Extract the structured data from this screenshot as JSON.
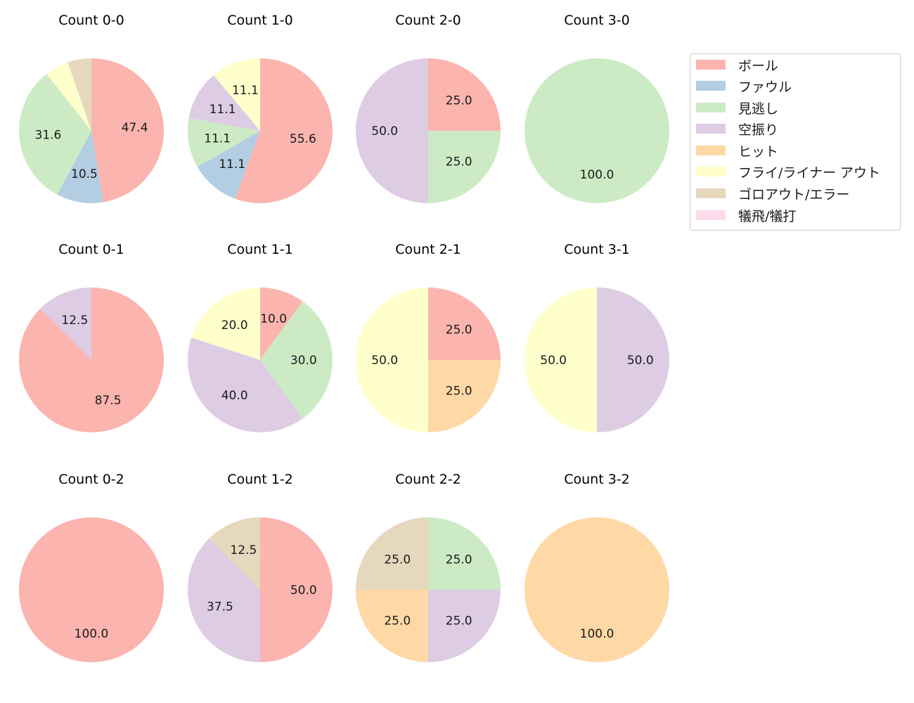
{
  "legend": {
    "items": [
      {
        "label": "ボール",
        "color": "#fbb4ae"
      },
      {
        "label": "ファウル",
        "color": "#b3cde3"
      },
      {
        "label": "見逃し",
        "color": "#ccebc5"
      },
      {
        "label": "空振り",
        "color": "#decbe4"
      },
      {
        "label": "ヒット",
        "color": "#fed9a6"
      },
      {
        "label": "フライ/ライナー アウト",
        "color": "#ffffcc"
      },
      {
        "label": "ゴロアウト/エラー",
        "color": "#e5d8bd"
      },
      {
        "label": "犠飛/犠打",
        "color": "#fddaec"
      }
    ]
  },
  "chart_data": {
    "type": "pie",
    "categories": [
      "ボール",
      "ファウル",
      "見逃し",
      "空振り",
      "ヒット",
      "フライ/ライナー アウト",
      "ゴロアウト/エラー",
      "犠飛/犠打"
    ],
    "charts": [
      {
        "title": "Count 0-0",
        "values": [
          47.4,
          10.5,
          31.6,
          0,
          0,
          5.3,
          5.3,
          0
        ],
        "labels": [
          "47.4",
          "10.5",
          "31.6",
          "",
          "",
          "",
          "",
          ""
        ]
      },
      {
        "title": "Count 1-0",
        "values": [
          55.6,
          11.1,
          11.1,
          11.1,
          0,
          11.1,
          0,
          0
        ],
        "labels": [
          "55.6",
          "11.1",
          "11.1",
          "11.1",
          "",
          "11.1",
          "",
          ""
        ]
      },
      {
        "title": "Count 2-0",
        "values": [
          25.0,
          0,
          25.0,
          50.0,
          0,
          0,
          0,
          0
        ],
        "labels": [
          "25.0",
          "",
          "25.0",
          "50.0",
          "",
          "",
          "",
          ""
        ]
      },
      {
        "title": "Count 3-0",
        "values": [
          0,
          0,
          100.0,
          0,
          0,
          0,
          0,
          0
        ],
        "labels": [
          "",
          "",
          "100.0",
          "",
          "",
          "",
          "",
          ""
        ]
      },
      {
        "title": "Count 0-1",
        "values": [
          87.5,
          0,
          0,
          12.5,
          0,
          0,
          0,
          0
        ],
        "labels": [
          "87.5",
          "",
          "",
          "12.5",
          "",
          "",
          "",
          ""
        ]
      },
      {
        "title": "Count 1-1",
        "values": [
          10.0,
          0,
          30.0,
          40.0,
          0,
          20.0,
          0,
          0
        ],
        "labels": [
          "10.0",
          "",
          "30.0",
          "40.0",
          "",
          "20.0",
          "",
          ""
        ]
      },
      {
        "title": "Count 2-1",
        "values": [
          25.0,
          0,
          0,
          0,
          25.0,
          50.0,
          0,
          0
        ],
        "labels": [
          "25.0",
          "",
          "",
          "",
          "25.0",
          "50.0",
          "",
          ""
        ]
      },
      {
        "title": "Count 3-1",
        "values": [
          0,
          0,
          0,
          50.0,
          0,
          50.0,
          0,
          0
        ],
        "labels": [
          "",
          "",
          "",
          "50.0",
          "",
          "50.0",
          "",
          ""
        ]
      },
      {
        "title": "Count 0-2",
        "values": [
          100.0,
          0,
          0,
          0,
          0,
          0,
          0,
          0
        ],
        "labels": [
          "100.0",
          "",
          "",
          "",
          "",
          "",
          "",
          ""
        ]
      },
      {
        "title": "Count 1-2",
        "values": [
          50.0,
          0,
          0,
          37.5,
          0,
          0,
          12.5,
          0
        ],
        "labels": [
          "50.0",
          "",
          "",
          "37.5",
          "",
          "",
          "12.5",
          ""
        ]
      },
      {
        "title": "Count 2-2",
        "values": [
          0,
          0,
          25.0,
          25.0,
          25.0,
          0,
          25.0,
          0
        ],
        "labels": [
          "",
          "",
          "25.0",
          "25.0",
          "25.0",
          "",
          "25.0",
          ""
        ]
      },
      {
        "title": "Count 3-2",
        "values": [
          0,
          0,
          0,
          0,
          100.0,
          0,
          0,
          0
        ],
        "labels": [
          "",
          "",
          "",
          "",
          "100.0",
          "",
          "",
          ""
        ]
      }
    ],
    "grid": "3x4",
    "legend_position": "upper right",
    "start_angle": 90,
    "direction": "clockwise"
  }
}
